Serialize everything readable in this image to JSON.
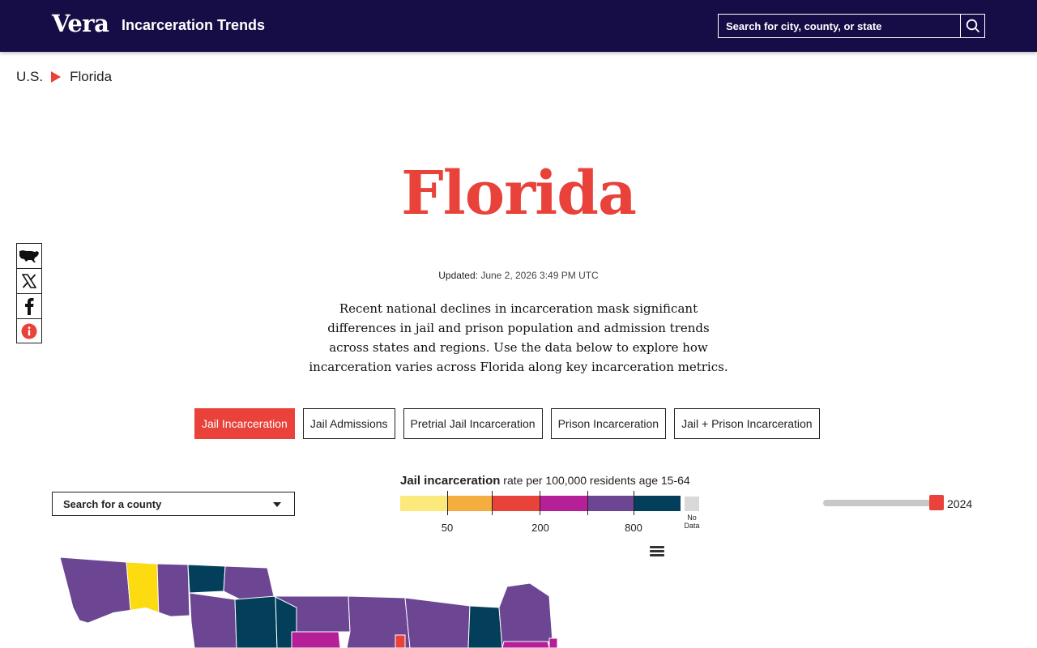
{
  "header": {
    "logo": "Vera",
    "site_title": "Incarceration Trends",
    "search_placeholder": "Search for city, county, or state"
  },
  "breadcrumb": {
    "items": [
      "U.S.",
      "Florida"
    ]
  },
  "page": {
    "title": "Florida",
    "updated_label": "Updated:",
    "updated_value": "June 2, 2026 3:49 PM UTC",
    "intro": "Recent national declines in incarceration mask significant differences in jail and prison population and admission trends across states and regions. Use the data below to explore how incarceration varies across Florida along key incarceration metrics."
  },
  "share_icons": [
    "us-map-icon",
    "x-icon",
    "facebook-icon",
    "info-icon"
  ],
  "tabs": [
    {
      "label": "Jail Incarceration",
      "active": true
    },
    {
      "label": "Jail Admissions",
      "active": false
    },
    {
      "label": "Pretrial Jail Incarceration",
      "active": false
    },
    {
      "label": "Prison Incarceration",
      "active": false
    },
    {
      "label": "Jail + Prison Incarceration",
      "active": false
    }
  ],
  "county_search": {
    "placeholder": "Search for a county"
  },
  "legend": {
    "title": "Jail incarceration",
    "subtitle": "rate per 100,000 residents age 15-64",
    "colors": [
      "#fbe97c",
      "#f4ad3f",
      "#e8423a",
      "#b51f97",
      "#6c4593",
      "#033e5b"
    ],
    "tick_labels": [
      "50",
      "200",
      "800"
    ],
    "no_data_label": "No Data",
    "no_data_color": "#d9d9d9"
  },
  "year_slider": {
    "value": "2024",
    "position_fraction": 1.0
  },
  "colors": {
    "accent": "#e8423a",
    "header_bg": "#160d46"
  }
}
